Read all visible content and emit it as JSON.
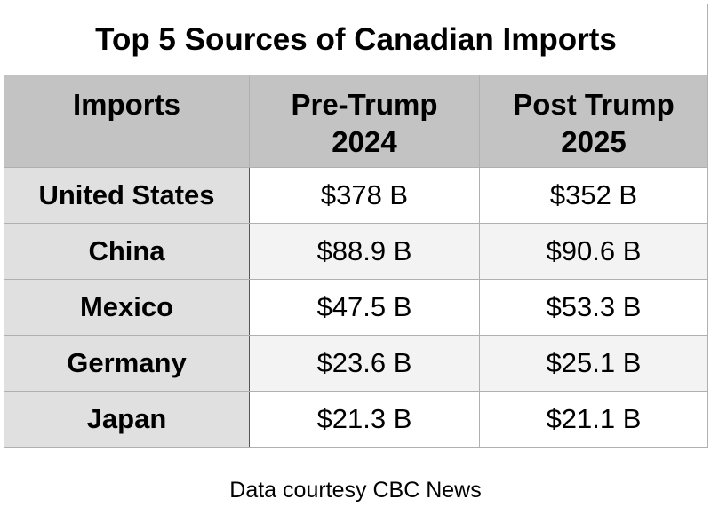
{
  "chart_data": {
    "type": "table",
    "title": "Top 5 Sources of Canadian Imports",
    "columns": [
      {
        "line1": "Imports",
        "line2": ""
      },
      {
        "line1": "Pre-Trump",
        "line2": "2024"
      },
      {
        "line1": "Post Trump",
        "line2": "2025"
      }
    ],
    "rows": [
      {
        "country": "United States",
        "pre": "$378 B",
        "post": "$352 B"
      },
      {
        "country": "China",
        "pre": "$88.9 B",
        "post": "$90.6 B"
      },
      {
        "country": "Mexico",
        "pre": "$47.5 B",
        "post": "$53.3 B"
      },
      {
        "country": "Germany",
        "pre": "$23.6 B",
        "post": "$25.1 B"
      },
      {
        "country": "Japan",
        "pre": "$21.3 B",
        "post": "$21.1 B"
      }
    ],
    "caption": "Data courtesy CBC News"
  }
}
